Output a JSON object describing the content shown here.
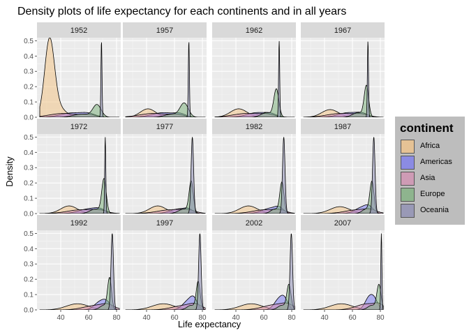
{
  "chart_data": {
    "type": "area",
    "title": "Density plots of life expectancy for each continents and in all years",
    "xlabel": "Life expectancy",
    "ylabel": "Density",
    "xlim": [
      23,
      83
    ],
    "ylim": [
      0,
      0.52
    ],
    "x_ticks": [
      40,
      60,
      80
    ],
    "y_ticks": [
      0.0,
      0.1,
      0.2,
      0.3,
      0.4,
      0.5
    ],
    "y_tick_labels": [
      "0.0",
      "0.1",
      "0.2",
      "0.3",
      "0.4",
      "0.5"
    ],
    "grid": true,
    "legend_position": "right",
    "legend": {
      "title": "continent",
      "entries": [
        {
          "name": "Africa",
          "color": "#f3c488"
        },
        {
          "name": "Americas",
          "color": "#7b7bf0"
        },
        {
          "name": "Asia",
          "color": "#d490b3"
        },
        {
          "name": "Europe",
          "color": "#7fb27f"
        },
        {
          "name": "Oceania",
          "color": "#8e8eb4"
        }
      ]
    },
    "panels": [
      {
        "label": "1952",
        "series": [
          {
            "name": "Africa",
            "peaks": [
              [
                32,
                0.5,
                3.5
              ],
              [
                39,
                0.055,
                5
              ]
            ]
          },
          {
            "name": "Americas",
            "peaks": [
              [
                48,
                0.028,
                8
              ],
              [
                60,
                0.02,
                5
              ]
            ]
          },
          {
            "name": "Asia",
            "peaks": [
              [
                42,
                0.025,
                10
              ],
              [
                60,
                0.015,
                5
              ]
            ]
          },
          {
            "name": "Europe",
            "peaks": [
              [
                55,
                0.02,
                6
              ],
              [
                66,
                0.08,
                3
              ]
            ]
          },
          {
            "name": "Oceania",
            "peaks": [
              [
                69.2,
                0.5,
                0.4
              ]
            ]
          }
        ]
      },
      {
        "label": "1957",
        "series": [
          {
            "name": "Africa",
            "peaks": [
              [
                41,
                0.055,
                5.5
              ]
            ]
          },
          {
            "name": "Americas",
            "peaks": [
              [
                52,
                0.03,
                8
              ],
              [
                64,
                0.018,
                4
              ]
            ]
          },
          {
            "name": "Asia",
            "peaks": [
              [
                45,
                0.025,
                10
              ],
              [
                62,
                0.015,
                5
              ]
            ]
          },
          {
            "name": "Europe",
            "peaks": [
              [
                58,
                0.02,
                5
              ],
              [
                67,
                0.09,
                3
              ]
            ]
          },
          {
            "name": "Oceania",
            "peaks": [
              [
                70.3,
                0.5,
                0.4
              ]
            ]
          }
        ]
      },
      {
        "label": "1962",
        "series": [
          {
            "name": "Africa",
            "peaks": [
              [
                42,
                0.055,
                6
              ]
            ]
          },
          {
            "name": "Americas",
            "peaks": [
              [
                55,
                0.03,
                7
              ],
              [
                65,
                0.018,
                4
              ]
            ]
          },
          {
            "name": "Asia",
            "peaks": [
              [
                48,
                0.025,
                10
              ],
              [
                63,
                0.015,
                5
              ]
            ]
          },
          {
            "name": "Europe",
            "peaks": [
              [
                62,
                0.03,
                4
              ],
              [
                69,
                0.18,
                1.8
              ]
            ]
          },
          {
            "name": "Oceania",
            "peaks": [
              [
                71,
                0.5,
                0.4
              ]
            ]
          }
        ]
      },
      {
        "label": "1967",
        "series": [
          {
            "name": "Africa",
            "peaks": [
              [
                44,
                0.05,
                6
              ]
            ]
          },
          {
            "name": "Americas",
            "peaks": [
              [
                57,
                0.03,
                7
              ],
              [
                67,
                0.02,
                4
              ]
            ]
          },
          {
            "name": "Asia",
            "peaks": [
              [
                52,
                0.025,
                10
              ],
              [
                67,
                0.015,
                5
              ]
            ]
          },
          {
            "name": "Europe",
            "peaks": [
              [
                64,
                0.03,
                4
              ],
              [
                70,
                0.2,
                1.6
              ]
            ]
          },
          {
            "name": "Oceania",
            "peaks": [
              [
                71.1,
                0.5,
                0.4
              ]
            ]
          }
        ]
      },
      {
        "label": "1972",
        "series": [
          {
            "name": "Africa",
            "peaks": [
              [
                46,
                0.05,
                6
              ]
            ]
          },
          {
            "name": "Americas",
            "peaks": [
              [
                60,
                0.03,
                7
              ],
              [
                68,
                0.02,
                4
              ]
            ]
          },
          {
            "name": "Asia",
            "peaks": [
              [
                55,
                0.025,
                10
              ],
              [
                68,
                0.015,
                5
              ]
            ]
          },
          {
            "name": "Europe",
            "peaks": [
              [
                65,
                0.03,
                4
              ],
              [
                71,
                0.22,
                1.6
              ]
            ]
          },
          {
            "name": "Oceania",
            "peaks": [
              [
                71.9,
                0.5,
                0.4
              ]
            ]
          }
        ]
      },
      {
        "label": "1977",
        "series": [
          {
            "name": "Africa",
            "peaks": [
              [
                48,
                0.05,
                6
              ]
            ]
          },
          {
            "name": "Americas",
            "peaks": [
              [
                63,
                0.03,
                6
              ],
              [
                70,
                0.02,
                3
              ]
            ]
          },
          {
            "name": "Asia",
            "peaks": [
              [
                58,
                0.025,
                10
              ],
              [
                70,
                0.015,
                5
              ]
            ]
          },
          {
            "name": "Europe",
            "peaks": [
              [
                67,
                0.03,
                4
              ],
              [
                72,
                0.2,
                1.5
              ]
            ]
          },
          {
            "name": "Oceania",
            "peaks": [
              [
                72.8,
                0.5,
                0.9
              ]
            ]
          }
        ]
      },
      {
        "label": "1982",
        "series": [
          {
            "name": "Africa",
            "peaks": [
              [
                49,
                0.05,
                6.5
              ]
            ]
          },
          {
            "name": "Americas",
            "peaks": [
              [
                65,
                0.035,
                6
              ],
              [
                71,
                0.025,
                3
              ]
            ]
          },
          {
            "name": "Asia",
            "peaks": [
              [
                61,
                0.025,
                9
              ],
              [
                72,
                0.015,
                4
              ]
            ]
          },
          {
            "name": "Europe",
            "peaks": [
              [
                68,
                0.03,
                3
              ],
              [
                73,
                0.2,
                1.5
              ]
            ]
          },
          {
            "name": "Oceania",
            "peaks": [
              [
                74.3,
                0.5,
                0.9
              ]
            ]
          }
        ]
      },
      {
        "label": "1987",
        "series": [
          {
            "name": "Africa",
            "peaks": [
              [
                51,
                0.045,
                7
              ]
            ]
          },
          {
            "name": "Americas",
            "peaks": [
              [
                67,
                0.04,
                5
              ],
              [
                72,
                0.03,
                3
              ]
            ]
          },
          {
            "name": "Asia",
            "peaks": [
              [
                64,
                0.025,
                9
              ],
              [
                73,
                0.015,
                4
              ]
            ]
          },
          {
            "name": "Europe",
            "peaks": [
              [
                70,
                0.03,
                3
              ],
              [
                74,
                0.2,
                1.5
              ]
            ]
          },
          {
            "name": "Oceania",
            "peaks": [
              [
                75.3,
                0.5,
                0.9
              ]
            ]
          }
        ]
      },
      {
        "label": "1992",
        "series": [
          {
            "name": "Africa",
            "peaks": [
              [
                52,
                0.04,
                8
              ]
            ]
          },
          {
            "name": "Americas",
            "peaks": [
              [
                68,
                0.05,
                4
              ],
              [
                73,
                0.04,
                3
              ]
            ]
          },
          {
            "name": "Asia",
            "peaks": [
              [
                66,
                0.03,
                9
              ],
              [
                74,
                0.02,
                4
              ]
            ]
          },
          {
            "name": "Europe",
            "peaks": [
              [
                71,
                0.03,
                3
              ],
              [
                75,
                0.2,
                1.4
              ]
            ]
          },
          {
            "name": "Oceania",
            "peaks": [
              [
                76.9,
                0.5,
                0.9
              ]
            ]
          }
        ]
      },
      {
        "label": "1997",
        "series": [
          {
            "name": "Africa",
            "peaks": [
              [
                52,
                0.04,
                8
              ]
            ]
          },
          {
            "name": "Americas",
            "peaks": [
              [
                70,
                0.06,
                4
              ],
              [
                74,
                0.05,
                2.5
              ]
            ]
          },
          {
            "name": "Asia",
            "peaks": [
              [
                68,
                0.03,
                9
              ],
              [
                75,
                0.02,
                4
              ]
            ]
          },
          {
            "name": "Europe",
            "peaks": [
              [
                72,
                0.03,
                3
              ],
              [
                77,
                0.18,
                1.4
              ]
            ]
          },
          {
            "name": "Oceania",
            "peaks": [
              [
                78.2,
                0.5,
                0.9
              ]
            ]
          }
        ]
      },
      {
        "label": "2002",
        "series": [
          {
            "name": "Africa",
            "peaks": [
              [
                51,
                0.04,
                8
              ]
            ]
          },
          {
            "name": "Americas",
            "peaks": [
              [
                71,
                0.07,
                3.5
              ],
              [
                75,
                0.05,
                2.5
              ]
            ]
          },
          {
            "name": "Asia",
            "peaks": [
              [
                69,
                0.035,
                9
              ],
              [
                77,
                0.02,
                4
              ]
            ]
          },
          {
            "name": "Europe",
            "peaks": [
              [
                73,
                0.03,
                3
              ],
              [
                78,
                0.16,
                1.5
              ]
            ]
          },
          {
            "name": "Oceania",
            "peaks": [
              [
                79.7,
                0.5,
                0.9
              ]
            ]
          }
        ]
      },
      {
        "label": "2007",
        "series": [
          {
            "name": "Africa",
            "peaks": [
              [
                52,
                0.04,
                8
              ]
            ]
          },
          {
            "name": "Americas",
            "peaks": [
              [
                72,
                0.08,
                3
              ],
              [
                76,
                0.05,
                2.5
              ]
            ]
          },
          {
            "name": "Asia",
            "peaks": [
              [
                71,
                0.04,
                8
              ],
              [
                79,
                0.02,
                3
              ]
            ]
          },
          {
            "name": "Europe",
            "peaks": [
              [
                74,
                0.03,
                3
              ],
              [
                79,
                0.16,
                1.5
              ]
            ]
          },
          {
            "name": "Oceania",
            "peaks": [
              [
                80.7,
                0.5,
                0.4
              ]
            ]
          }
        ]
      }
    ]
  }
}
